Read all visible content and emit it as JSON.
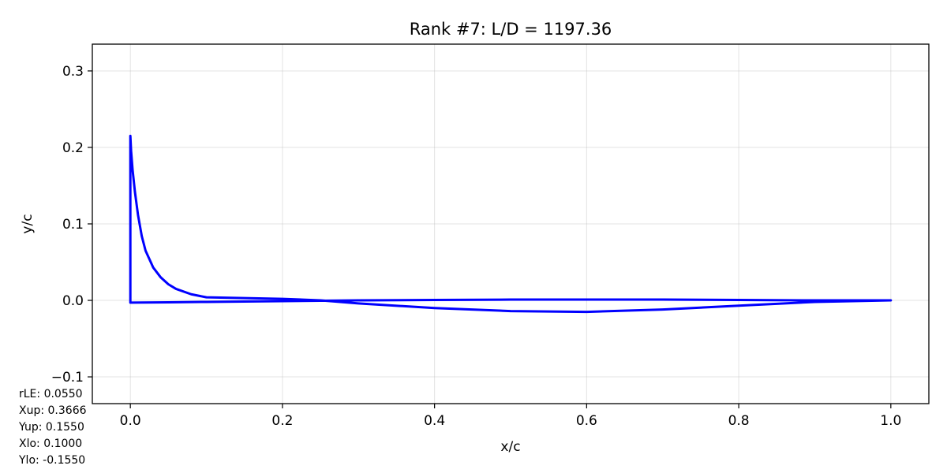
{
  "chart_data": {
    "type": "line",
    "title": "Rank #7: L/D = 1197.36",
    "xlabel": "x/c",
    "ylabel": "y/c",
    "xlim": [
      -0.05,
      1.05
    ],
    "ylim": [
      -0.135,
      0.335
    ],
    "xticks": [
      0.0,
      0.2,
      0.4,
      0.6,
      0.8,
      1.0
    ],
    "xtick_labels": [
      "0.0",
      "0.2",
      "0.4",
      "0.6",
      "0.8",
      "1.0"
    ],
    "yticks": [
      -0.1,
      0.0,
      0.1,
      0.2,
      0.3
    ],
    "ytick_labels": [
      "−0.1",
      "0.0",
      "0.1",
      "0.2",
      "0.3"
    ],
    "grid": true,
    "legend": "none",
    "series": [
      {
        "color": "#0000ff",
        "x": [
          1.0,
          0.95,
          0.9,
          0.8,
          0.7,
          0.6,
          0.5,
          0.4,
          0.3,
          0.25,
          0.2,
          0.15,
          0.1,
          0.08,
          0.06,
          0.05,
          0.04,
          0.03,
          0.02,
          0.015,
          0.01,
          0.006,
          0.003,
          0.001,
          0.0,
          0.0,
          0.0,
          0.05,
          0.1,
          0.2,
          0.3,
          0.4,
          0.5,
          0.6,
          0.7,
          0.8,
          0.9,
          0.95,
          1.0
        ],
        "y": [
          0.0,
          -0.001,
          -0.002,
          -0.007,
          -0.012,
          -0.015,
          -0.014,
          -0.01,
          -0.004,
          0.0,
          0.002,
          0.003,
          0.004,
          0.008,
          0.015,
          0.021,
          0.03,
          0.043,
          0.065,
          0.084,
          0.112,
          0.142,
          0.17,
          0.195,
          0.215,
          0.0,
          -0.003,
          -0.0025,
          -0.002,
          -0.001,
          0.0,
          0.0005,
          0.001,
          0.001,
          0.001,
          0.0005,
          0.0,
          0.0,
          0.0
        ]
      }
    ]
  },
  "params": [
    "rLE: 0.0550",
    "Xup: 0.3666",
    "Yup: 0.1550",
    "Xlo: 0.1000",
    "Ylo: -0.1550"
  ]
}
